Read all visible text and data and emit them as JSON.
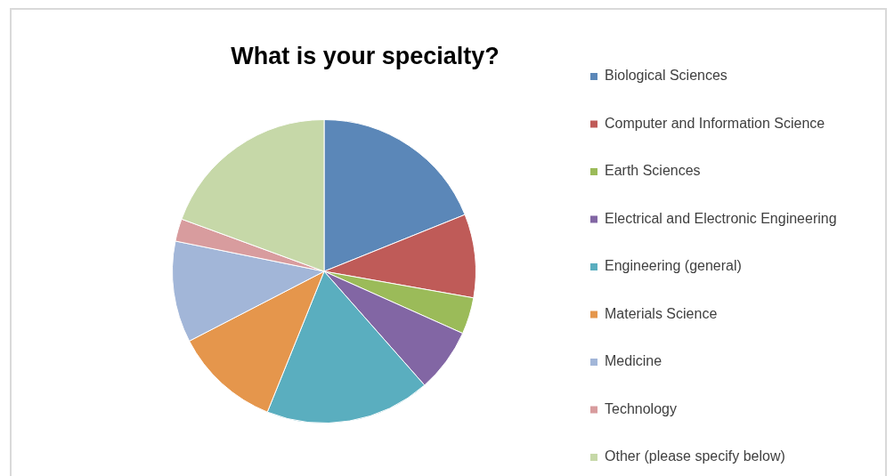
{
  "chart_data": {
    "type": "pie",
    "title": "What is your specialty?",
    "categories": [
      "Biological Sciences",
      "Computer and Information Science",
      "Earth Sciences",
      "Electrical and Electronic Engineering",
      "Engineering (general)",
      "Materials Science",
      "Medicine",
      "Technology",
      "Other (please specify below)"
    ],
    "values": [
      18.9,
      8.9,
      3.9,
      6.8,
      17.6,
      11.3,
      10.8,
      2.4,
      19.4
    ],
    "colors": [
      "#5b87b8",
      "#bf5b58",
      "#9bbb59",
      "#8266a4",
      "#5aaebf",
      "#e5964c",
      "#a2b6d8",
      "#d89c9e",
      "#c6d8a8"
    ],
    "legend": "right"
  }
}
